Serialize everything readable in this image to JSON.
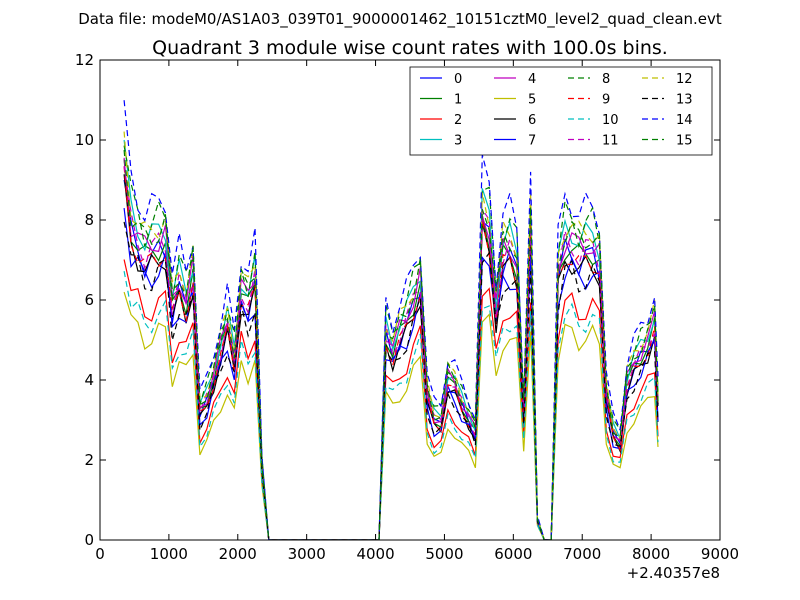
{
  "chart_data": {
    "type": "line",
    "suptitle": "Data file: modeM0/AS1A03_039T01_9000001462_10151cztM0_level2_quad_clean.evt",
    "title": "Quadrant 3 module wise count rates with 100.0s bins.",
    "xlabel": "",
    "ylabel": "",
    "offset_label": "+2.40357e8",
    "xlim": [
      0,
      9000
    ],
    "ylim": [
      0,
      12
    ],
    "x_ticks": [
      "0",
      "1000",
      "2000",
      "3000",
      "4000",
      "5000",
      "6000",
      "7000",
      "8000",
      "9000"
    ],
    "y_ticks": [
      "0",
      "2",
      "4",
      "6",
      "8",
      "10",
      "12"
    ],
    "legend_position": "upper right",
    "x": [
      350,
      450,
      550,
      650,
      750,
      850,
      950,
      1050,
      1150,
      1250,
      1350,
      1450,
      1550,
      1650,
      1750,
      1850,
      1950,
      2050,
      2150,
      2250,
      2350,
      2450,
      2550,
      2650,
      2750,
      2850,
      2950,
      3050,
      3150,
      3250,
      3350,
      3450,
      3550,
      3650,
      3750,
      3850,
      3950,
      4050,
      4150,
      4250,
      4350,
      4450,
      4550,
      4650,
      4750,
      4850,
      4950,
      5050,
      5150,
      5250,
      5350,
      5450,
      5550,
      5650,
      5750,
      5850,
      5950,
      6050,
      6150,
      6250,
      6350,
      6450,
      6550,
      6650,
      6750,
      6850,
      6950,
      7050,
      7150,
      7250,
      7350,
      7450,
      7550,
      7650,
      7750,
      7850,
      7950,
      8050,
      8100
    ],
    "base_profile": [
      9.0,
      7.6,
      7.3,
      6.9,
      7.0,
      7.2,
      7.3,
      5.6,
      6.2,
      5.8,
      6.5,
      3.1,
      3.4,
      4.0,
      4.6,
      5.2,
      4.4,
      6.1,
      5.7,
      6.3,
      1.8,
      0,
      0,
      0,
      0,
      0,
      0,
      0,
      0,
      0,
      0,
      0,
      0,
      0,
      0,
      0,
      0,
      0,
      5.0,
      4.6,
      5.0,
      5.3,
      5.8,
      6.3,
      3.5,
      2.9,
      2.9,
      3.9,
      3.7,
      3.3,
      3.0,
      2.6,
      7.8,
      7.5,
      5.6,
      6.9,
      7.0,
      6.7,
      3.1,
      7.6,
      0.5,
      0,
      0,
      6.4,
      7.2,
      7.2,
      6.9,
      7.0,
      7.1,
      6.8,
      3.5,
      2.6,
      2.4,
      3.8,
      4.2,
      4.5,
      4.8,
      5.2,
      3.3
    ],
    "series": [
      {
        "name": "0",
        "color": "#0000ff",
        "style": "solid",
        "scale": 1.0
      },
      {
        "name": "1",
        "color": "#008000",
        "style": "solid",
        "scale": 1.02
      },
      {
        "name": "2",
        "color": "#ff0000",
        "style": "solid",
        "scale": 0.82
      },
      {
        "name": "3",
        "color": "#00bfbf",
        "style": "solid",
        "scale": 1.08
      },
      {
        "name": "4",
        "color": "#bf00bf",
        "style": "solid",
        "scale": 1.05
      },
      {
        "name": "5",
        "color": "#bfbf00",
        "style": "solid",
        "scale": 0.72
      },
      {
        "name": "6",
        "color": "#000000",
        "style": "solid",
        "scale": 0.97
      },
      {
        "name": "7",
        "color": "#0000ff",
        "style": "solid",
        "scale": 0.94
      },
      {
        "name": "8",
        "color": "#008000",
        "style": "dashed",
        "scale": 1.12
      },
      {
        "name": "9",
        "color": "#ff0000",
        "style": "dashed",
        "scale": 0.99
      },
      {
        "name": "10",
        "color": "#00bfbf",
        "style": "dashed",
        "scale": 0.78
      },
      {
        "name": "11",
        "color": "#bf00bf",
        "style": "dashed",
        "scale": 1.03
      },
      {
        "name": "12",
        "color": "#bfbf00",
        "style": "dashed",
        "scale": 1.1
      },
      {
        "name": "13",
        "color": "#000000",
        "style": "dashed",
        "scale": 0.93
      },
      {
        "name": "14",
        "color": "#0000ff",
        "style": "dashed",
        "scale": 1.18
      },
      {
        "name": "15",
        "color": "#008000",
        "style": "dashed",
        "scale": 1.08
      }
    ]
  }
}
